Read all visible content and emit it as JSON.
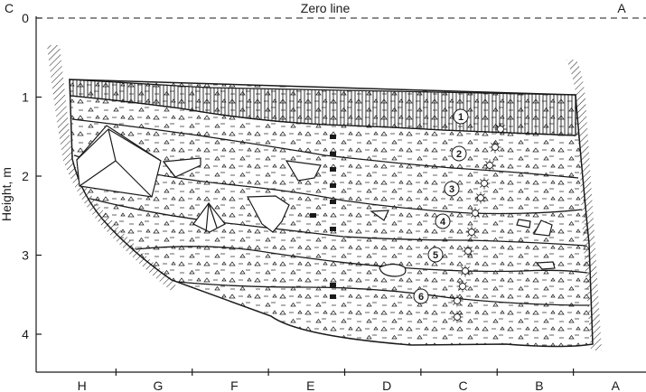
{
  "zero_line": {
    "label": "Zero line",
    "left_label": "C",
    "right_label": "A"
  },
  "y_axis": {
    "title": "Height, m",
    "ticks": [
      "0",
      "1",
      "2",
      "3",
      "4"
    ]
  },
  "x_axis": {
    "labels": [
      "H",
      "G",
      "F",
      "E",
      "D",
      "C",
      "B",
      "A"
    ]
  },
  "layers": [
    "1",
    "2",
    "3",
    "4",
    "5",
    "6"
  ],
  "colors": {
    "ink": "#1a1a1a",
    "background": "#ffffff"
  }
}
